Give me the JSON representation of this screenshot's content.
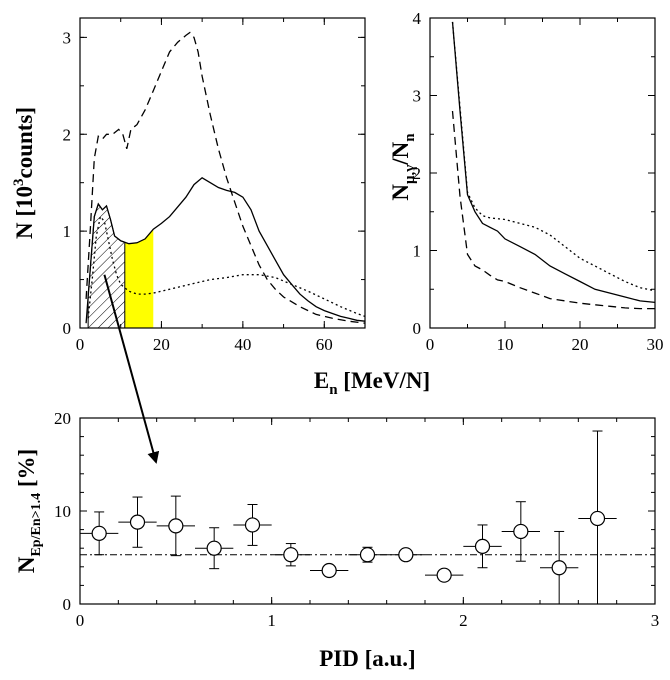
{
  "chart_data": [
    {
      "id": "spectra",
      "type": "line",
      "xlabel": {
        "main": "E",
        "sub": "n",
        "rest": " [MeV/N]"
      },
      "ylabel": {
        "main": "N [10",
        "sup": "3",
        "rest": "counts]"
      },
      "xlim": [
        0,
        70
      ],
      "ylim": [
        0,
        3.2
      ],
      "xticks": [
        0,
        20,
        40,
        60
      ],
      "yticks": [
        0,
        1,
        2,
        3
      ],
      "hatched_region": [
        2,
        11
      ],
      "yellow_band": [
        11,
        18
      ],
      "highlight_color": "#ffff00",
      "series": [
        {
          "style": "solid",
          "points": [
            [
              1.5,
              0.05
            ],
            [
              2.5,
              0.6
            ],
            [
              3.5,
              1.15
            ],
            [
              4.5,
              1.28
            ],
            [
              5.5,
              1.22
            ],
            [
              6.5,
              1.26
            ],
            [
              7.5,
              1.12
            ],
            [
              8.5,
              0.95
            ],
            [
              10,
              0.9
            ],
            [
              12,
              0.87
            ],
            [
              14,
              0.88
            ],
            [
              16,
              0.92
            ],
            [
              18,
              1.02
            ],
            [
              20,
              1.08
            ],
            [
              22,
              1.15
            ],
            [
              24,
              1.25
            ],
            [
              26,
              1.35
            ],
            [
              28,
              1.48
            ],
            [
              30,
              1.55
            ],
            [
              32,
              1.5
            ],
            [
              34,
              1.45
            ],
            [
              36,
              1.42
            ],
            [
              38,
              1.4
            ],
            [
              40,
              1.35
            ],
            [
              42,
              1.22
            ],
            [
              44,
              1.0
            ],
            [
              46,
              0.85
            ],
            [
              48,
              0.7
            ],
            [
              50,
              0.55
            ],
            [
              52,
              0.45
            ],
            [
              54,
              0.35
            ],
            [
              56,
              0.28
            ],
            [
              58,
              0.22
            ],
            [
              60,
              0.18
            ],
            [
              62,
              0.15
            ],
            [
              64,
              0.12
            ],
            [
              66,
              0.1
            ],
            [
              68,
              0.08
            ],
            [
              70,
              0.07
            ]
          ]
        },
        {
          "style": "dashed",
          "points": [
            [
              1.5,
              0.3
            ],
            [
              2.5,
              1.0
            ],
            [
              3.5,
              1.75
            ],
            [
              4.5,
              1.98
            ],
            [
              5.5,
              1.95
            ],
            [
              6.5,
              2.0
            ],
            [
              8,
              2.0
            ],
            [
              9.5,
              2.05
            ],
            [
              10.5,
              2.0
            ],
            [
              11.5,
              1.85
            ],
            [
              12.5,
              2.05
            ],
            [
              14,
              2.1
            ],
            [
              16,
              2.25
            ],
            [
              18,
              2.45
            ],
            [
              20,
              2.65
            ],
            [
              22,
              2.85
            ],
            [
              24,
              2.95
            ],
            [
              26,
              3.02
            ],
            [
              27,
              3.05
            ],
            [
              28,
              3.0
            ],
            [
              29,
              2.85
            ],
            [
              30,
              2.6
            ],
            [
              32,
              2.2
            ],
            [
              34,
              1.85
            ],
            [
              36,
              1.55
            ],
            [
              38,
              1.3
            ],
            [
              40,
              1.05
            ],
            [
              42,
              0.85
            ],
            [
              44,
              0.65
            ],
            [
              46,
              0.5
            ],
            [
              48,
              0.4
            ],
            [
              50,
              0.32
            ],
            [
              54,
              0.22
            ],
            [
              58,
              0.14
            ],
            [
              62,
              0.1
            ],
            [
              66,
              0.07
            ],
            [
              70,
              0.05
            ]
          ]
        },
        {
          "style": "dotted",
          "points": [
            [
              2,
              0.1
            ],
            [
              3,
              0.5
            ],
            [
              4,
              0.95
            ],
            [
              5,
              1.15
            ],
            [
              6,
              1.1
            ],
            [
              7,
              0.9
            ],
            [
              8,
              0.7
            ],
            [
              9,
              0.55
            ],
            [
              10,
              0.45
            ],
            [
              12,
              0.38
            ],
            [
              14,
              0.35
            ],
            [
              16,
              0.35
            ],
            [
              18,
              0.36
            ],
            [
              20,
              0.38
            ],
            [
              24,
              0.42
            ],
            [
              28,
              0.46
            ],
            [
              32,
              0.5
            ],
            [
              36,
              0.52
            ],
            [
              40,
              0.55
            ],
            [
              44,
              0.55
            ],
            [
              48,
              0.52
            ],
            [
              52,
              0.45
            ],
            [
              56,
              0.38
            ],
            [
              60,
              0.3
            ],
            [
              64,
              0.22
            ],
            [
              68,
              0.15
            ],
            [
              70,
              0.12
            ]
          ]
        }
      ]
    },
    {
      "id": "ratios",
      "type": "line",
      "xlabel": "",
      "ylabel": {
        "main": "N",
        "sub": "μ,γ",
        "rest": "/N",
        "sub2": "n"
      },
      "xlim": [
        0,
        30
      ],
      "ylim": [
        0,
        4
      ],
      "xticks": [
        0,
        10,
        20,
        30
      ],
      "yticks": [
        0,
        1,
        2,
        3,
        4
      ],
      "series": [
        {
          "style": "solid",
          "points": [
            [
              3,
              3.95
            ],
            [
              4,
              2.8
            ],
            [
              5,
              1.72
            ],
            [
              6,
              1.5
            ],
            [
              7,
              1.35
            ],
            [
              8,
              1.3
            ],
            [
              9,
              1.25
            ],
            [
              10,
              1.15
            ],
            [
              12,
              1.05
            ],
            [
              14,
              0.95
            ],
            [
              16,
              0.8
            ],
            [
              18,
              0.7
            ],
            [
              20,
              0.6
            ],
            [
              22,
              0.5
            ],
            [
              24,
              0.45
            ],
            [
              26,
              0.4
            ],
            [
              28,
              0.35
            ],
            [
              30,
              0.33
            ]
          ]
        },
        {
          "style": "dashed",
          "points": [
            [
              3,
              2.8
            ],
            [
              4,
              1.7
            ],
            [
              5,
              0.95
            ],
            [
              6,
              0.8
            ],
            [
              7,
              0.75
            ],
            [
              8,
              0.68
            ],
            [
              9,
              0.62
            ],
            [
              10,
              0.6
            ],
            [
              12,
              0.52
            ],
            [
              14,
              0.45
            ],
            [
              16,
              0.38
            ],
            [
              18,
              0.35
            ],
            [
              20,
              0.32
            ],
            [
              22,
              0.3
            ],
            [
              24,
              0.28
            ],
            [
              26,
              0.26
            ],
            [
              28,
              0.25
            ],
            [
              30,
              0.25
            ]
          ]
        },
        {
          "style": "dotted",
          "points": [
            [
              3,
              3.95
            ],
            [
              4,
              2.85
            ],
            [
              5,
              1.75
            ],
            [
              6,
              1.55
            ],
            [
              7,
              1.45
            ],
            [
              8,
              1.42
            ],
            [
              10,
              1.4
            ],
            [
              12,
              1.35
            ],
            [
              14,
              1.3
            ],
            [
              16,
              1.2
            ],
            [
              18,
              1.05
            ],
            [
              20,
              0.9
            ],
            [
              22,
              0.8
            ],
            [
              24,
              0.7
            ],
            [
              26,
              0.6
            ],
            [
              28,
              0.52
            ],
            [
              30,
              0.48
            ]
          ]
        }
      ]
    },
    {
      "id": "pid",
      "type": "scatter",
      "xlabel": "PID [a.u.]",
      "ylabel": {
        "main": "N",
        "sub": "Ep/En>1.4",
        "rest": " [%]"
      },
      "xlim": [
        0,
        3
      ],
      "ylim": [
        0,
        20
      ],
      "xticks": [
        0,
        1,
        2,
        3
      ],
      "yticks": [
        0,
        10,
        20
      ],
      "reference_line_y": 5.3,
      "x_error": 0.1,
      "points": [
        {
          "x": 0.1,
          "y": 7.6,
          "err": 2.3
        },
        {
          "x": 0.3,
          "y": 8.8,
          "err": 2.7
        },
        {
          "x": 0.5,
          "y": 8.4,
          "err": 3.2
        },
        {
          "x": 0.7,
          "y": 6.0,
          "err": 2.2
        },
        {
          "x": 0.9,
          "y": 8.5,
          "err": 2.2
        },
        {
          "x": 1.1,
          "y": 5.3,
          "err": 1.2
        },
        {
          "x": 1.3,
          "y": 3.6,
          "err": 0.4
        },
        {
          "x": 1.5,
          "y": 5.3,
          "err": 0.8
        },
        {
          "x": 1.7,
          "y": 5.3,
          "err": 0.5
        },
        {
          "x": 1.9,
          "y": 3.1,
          "err": 0.4
        },
        {
          "x": 2.1,
          "y": 6.2,
          "err": 2.3
        },
        {
          "x": 2.3,
          "y": 7.8,
          "err": 3.2
        },
        {
          "x": 2.5,
          "y": 3.9,
          "err": 3.9
        },
        {
          "x": 2.7,
          "y": 9.2,
          "err": 9.4
        }
      ]
    }
  ]
}
